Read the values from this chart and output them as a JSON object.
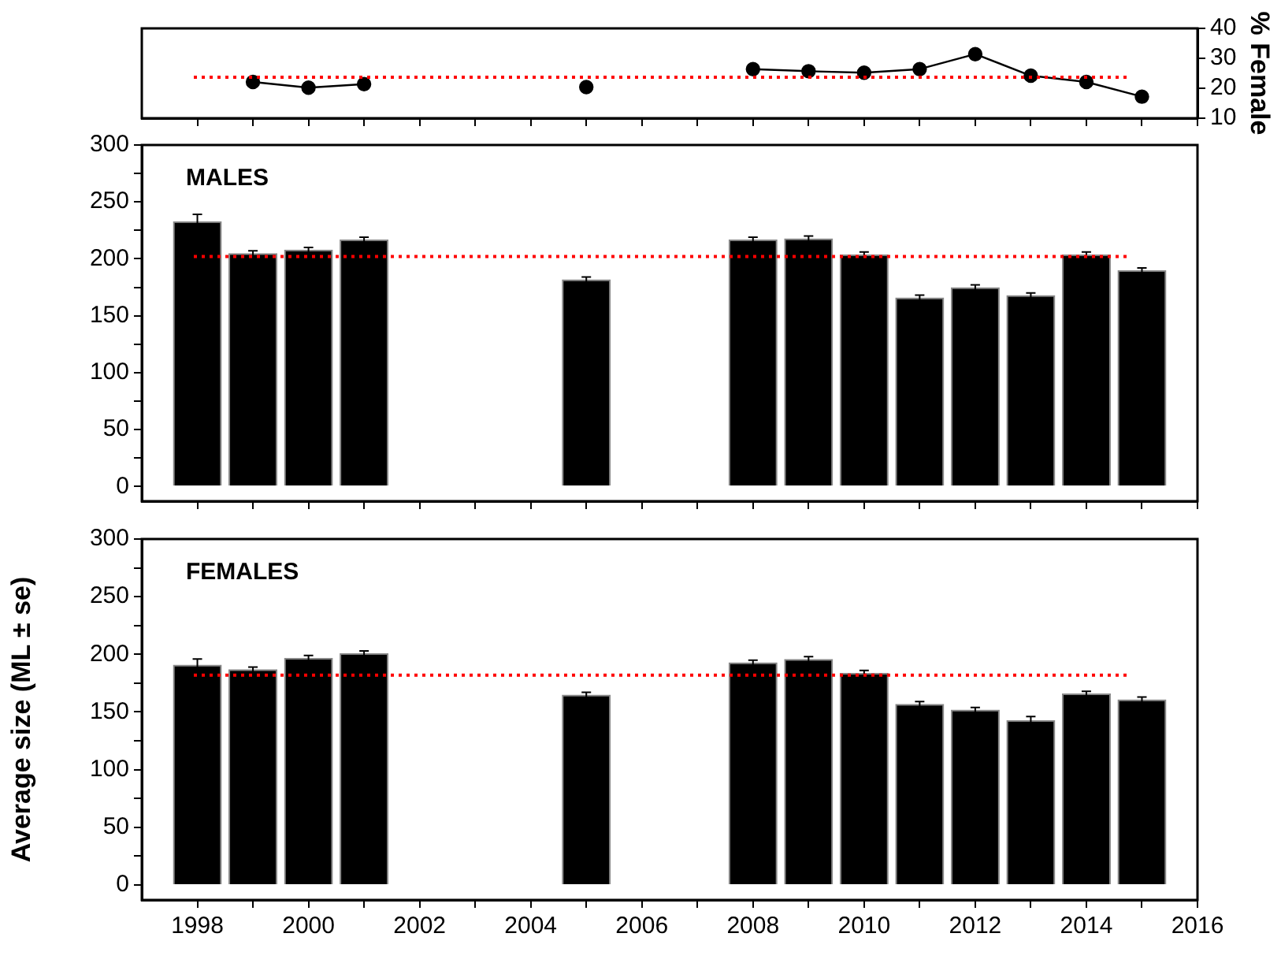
{
  "chart_data": [
    {
      "type": "line",
      "x": [
        1999,
        2000,
        2001,
        2002,
        2003,
        2004,
        2005,
        2006,
        2007,
        2008,
        2009,
        2010,
        2011,
        2012,
        2013,
        2014,
        2015
      ],
      "series": [
        {
          "color": "#000000",
          "axis": "y2",
          "values": [
            22.1,
            20.2,
            21.4,
            null,
            null,
            null,
            20.4,
            null,
            null,
            26.4,
            25.7,
            25.2,
            26.4,
            31.4,
            24.2,
            22.1,
            17.2
          ]
        }
      ],
      "y2label": "% Female",
      "xlim": [
        1997,
        2016
      ],
      "xticks": [
        1998,
        {
          "value": 1999,
          "label": null
        },
        2000,
        {
          "value": 2001,
          "label": null
        },
        2002,
        {
          "value": 2003,
          "label": null
        },
        2004,
        {
          "value": 2005,
          "label": null
        },
        2006,
        {
          "value": 2007,
          "label": null
        },
        2008,
        {
          "value": 2009,
          "label": null
        },
        2010,
        {
          "value": 2011,
          "label": null
        },
        2012,
        {
          "value": 2013,
          "label": null
        },
        2014,
        {
          "value": 2015,
          "label": null
        },
        2016
      ],
      "y2lim": [
        10,
        40
      ],
      "y2ticks": [
        10,
        20,
        30,
        40
      ],
      "ref_lines": [
        {
          "axis": "y2",
          "value": 23.7,
          "color": "#ff0000",
          "line_style": "dotted"
        }
      ],
      "marker": "circle",
      "tick_labels": "y"
    },
    {
      "type": "bar",
      "x": [
        1998,
        1999,
        2000,
        2001,
        2005,
        2008,
        2009,
        2010,
        2011,
        2012,
        2013,
        2014,
        2015
      ],
      "values": [
        233,
        205,
        208,
        217,
        182,
        217,
        218,
        204,
        166,
        175,
        168,
        204,
        190
      ],
      "errors": [
        6,
        2,
        2,
        2,
        2,
        2,
        2,
        2,
        2,
        2,
        2,
        2,
        2
      ],
      "color": "#000000",
      "annotations": [
        "MALES"
      ],
      "xlim": [
        1997,
        2016
      ],
      "xticks": [
        1998,
        {
          "value": 1999,
          "label": null
        },
        2000,
        {
          "value": 2001,
          "label": null
        },
        2002,
        {
          "value": 2003,
          "label": null
        },
        2004,
        {
          "value": 2005,
          "label": null
        },
        2006,
        {
          "value": 2007,
          "label": null
        },
        2008,
        {
          "value": 2009,
          "label": null
        },
        2010,
        {
          "value": 2011,
          "label": null
        },
        2012,
        {
          "value": 2013,
          "label": null
        },
        2014,
        {
          "value": 2015,
          "label": null
        },
        2016
      ],
      "ylim": [
        -13,
        300
      ],
      "yticks": [
        0,
        {
          "value": 25,
          "label": null
        },
        50,
        {
          "value": 75,
          "label": null
        },
        100,
        {
          "value": 125,
          "label": null
        },
        150,
        {
          "value": 175,
          "label": null
        },
        200,
        {
          "value": 225,
          "label": null
        },
        250,
        {
          "value": 275,
          "label": null
        },
        300
      ],
      "ref_lines": [
        {
          "axis": "y",
          "value": 202,
          "color": "#ff0000",
          "line_style": "dotted"
        }
      ],
      "tick_labels": "y"
    },
    {
      "type": "bar",
      "x": [
        1998,
        1999,
        2000,
        2001,
        2005,
        2008,
        2009,
        2010,
        2011,
        2012,
        2013,
        2014,
        2015
      ],
      "values": [
        191,
        187,
        197,
        201,
        165,
        193,
        196,
        184,
        157,
        152,
        143,
        166,
        161
      ],
      "errors": [
        5,
        2,
        2,
        2,
        2,
        2,
        2,
        2,
        2,
        2,
        3,
        2,
        2
      ],
      "color": "#000000",
      "annotations": [
        "FEMALES"
      ],
      "ylabel": "Average size (ML ± se)",
      "xlim": [
        1997,
        2016
      ],
      "xticks": [
        1998,
        {
          "value": 1999,
          "label": null
        },
        2000,
        {
          "value": 2001,
          "label": null
        },
        2002,
        {
          "value": 2003,
          "label": null
        },
        2004,
        {
          "value": 2005,
          "label": null
        },
        2006,
        {
          "value": 2007,
          "label": null
        },
        2008,
        {
          "value": 2009,
          "label": null
        },
        2010,
        {
          "value": 2011,
          "label": null
        },
        2012,
        {
          "value": 2013,
          "label": null
        },
        2014,
        {
          "value": 2015,
          "label": null
        },
        2016
      ],
      "ylim": [
        -13,
        300
      ],
      "yticks": [
        0,
        {
          "value": 25,
          "label": null
        },
        50,
        {
          "value": 75,
          "label": null
        },
        100,
        {
          "value": 125,
          "label": null
        },
        150,
        {
          "value": 175,
          "label": null
        },
        200,
        {
          "value": 225,
          "label": null
        },
        250,
        {
          "value": 275,
          "label": null
        },
        300
      ],
      "ref_lines": [
        {
          "axis": "y",
          "value": 182,
          "color": "#ff0000",
          "line_style": "dotted"
        }
      ]
    }
  ]
}
